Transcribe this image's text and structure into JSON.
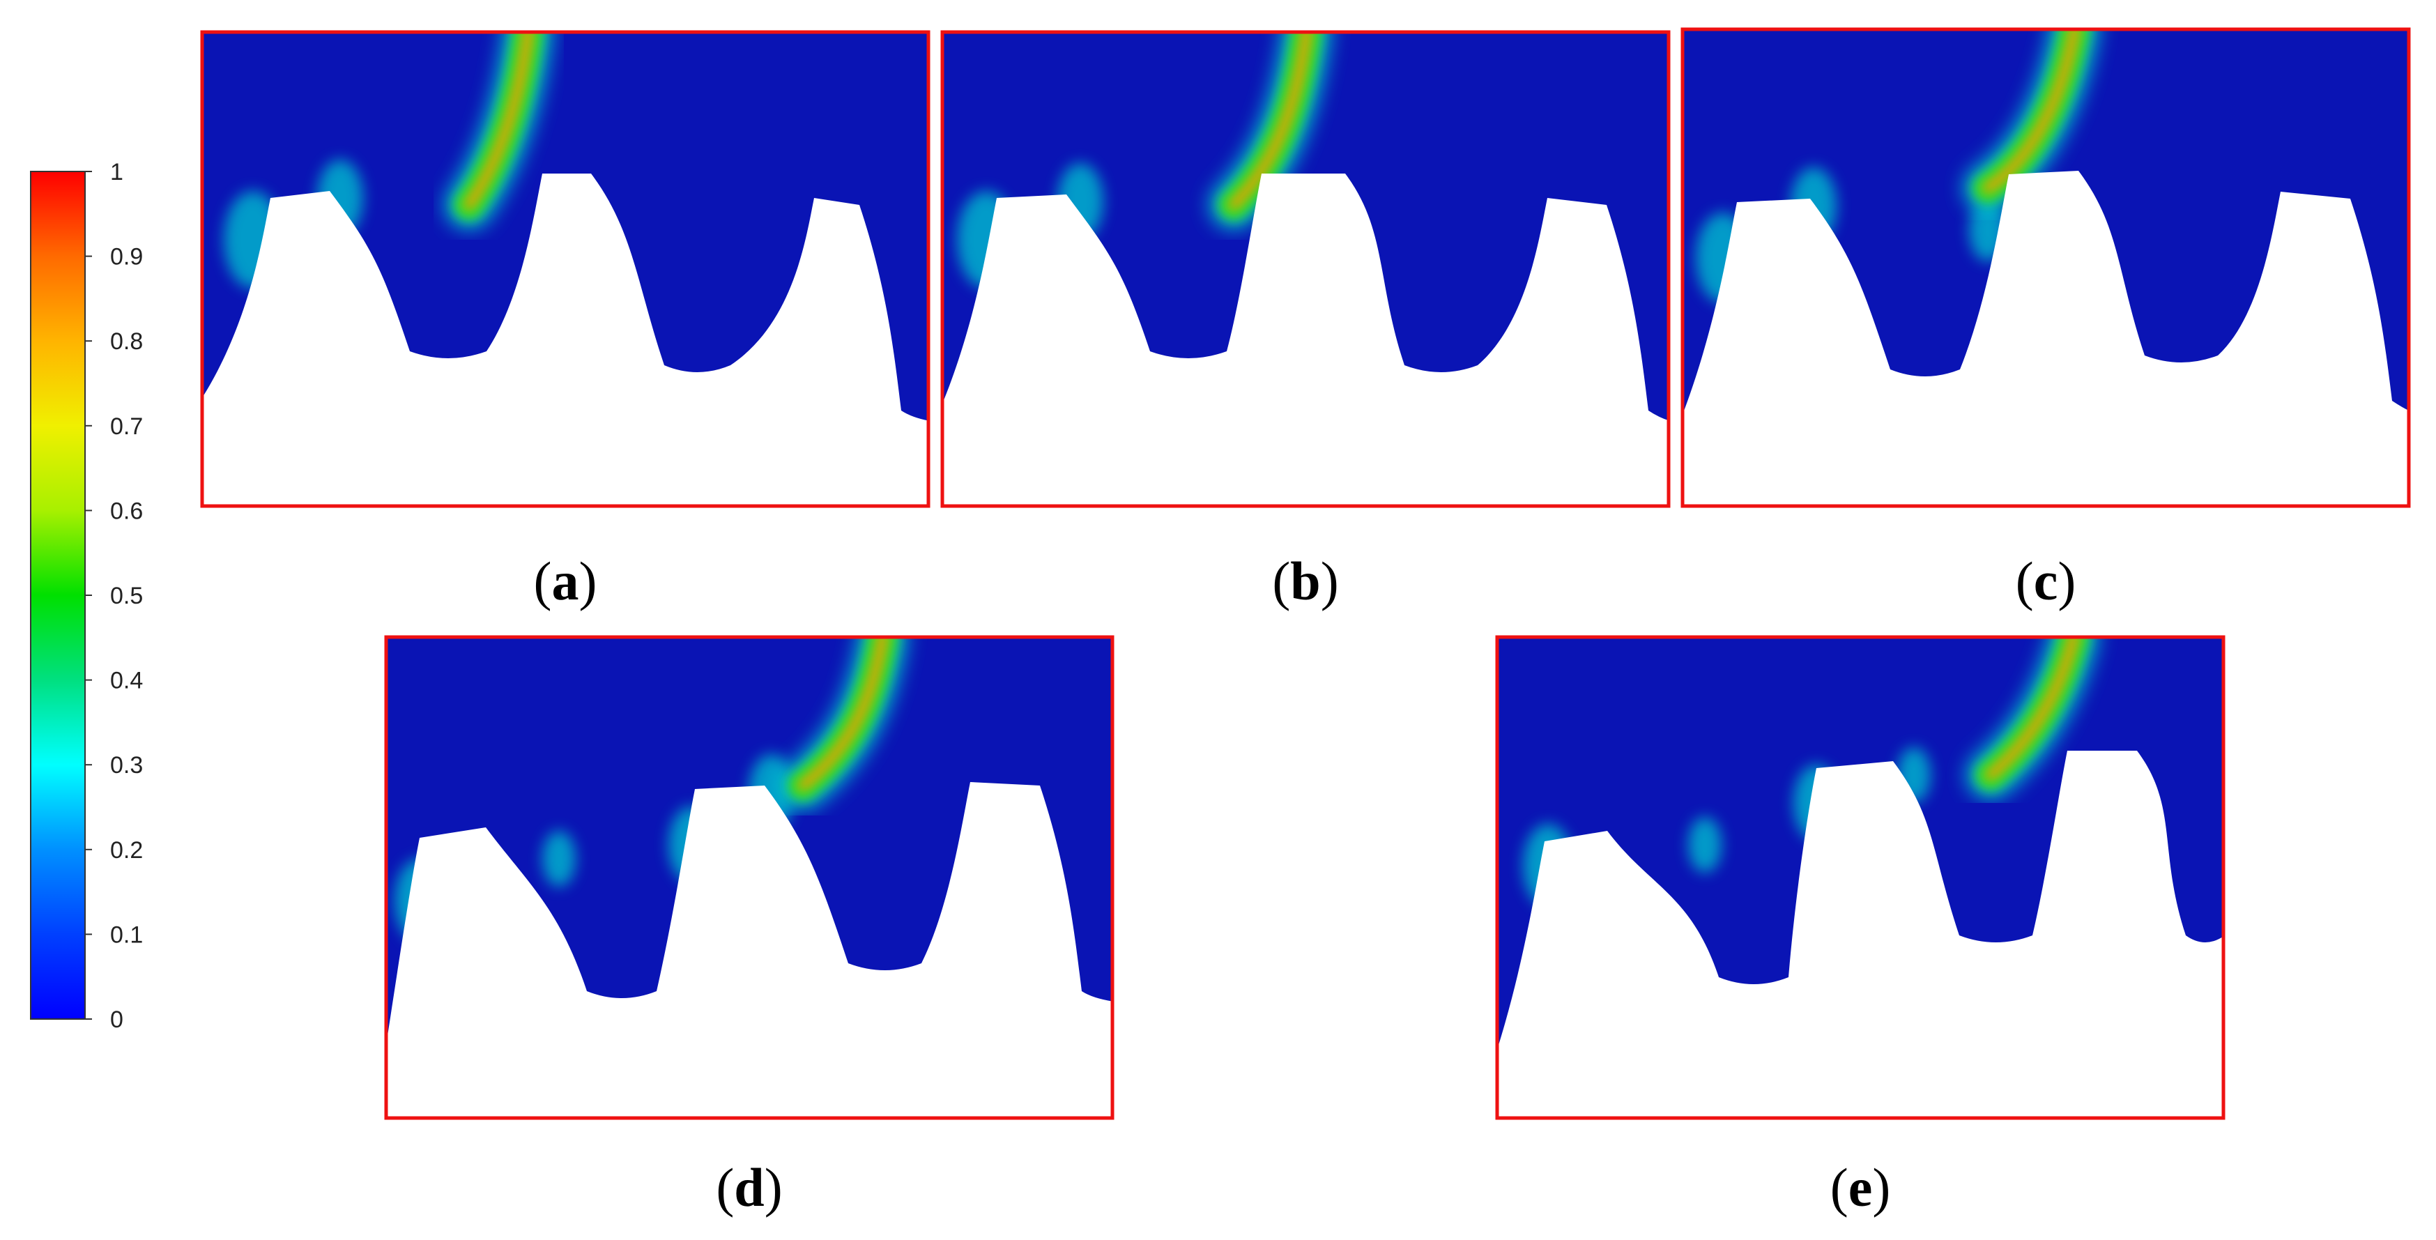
{
  "colorbar": {
    "ticks": [
      "1",
      "0.9",
      "0.8",
      "0.7",
      "0.6",
      "0.5",
      "0.4",
      "0.3",
      "0.2",
      "0.1",
      "0"
    ],
    "stops": [
      "#ff0000",
      "#ff6a00",
      "#ffb400",
      "#f0f000",
      "#a8f000",
      "#00e000",
      "#00e080",
      "#00ffff",
      "#0090ff",
      "#0040ff",
      "#0000ff"
    ]
  },
  "colors": {
    "fluid_background": "#0a14b4",
    "frame_border": "#ee1111",
    "gear_fill": "#ffffff",
    "jet_core": "#ff9a00",
    "jet_mid": "#33dd22",
    "jet_halo": "#00c8d0"
  },
  "panels": [
    {
      "id": "a",
      "caption_open": "(",
      "caption_letter": "a",
      "caption_close": ")"
    },
    {
      "id": "b",
      "caption_open": "(",
      "caption_letter": "b",
      "caption_close": ")"
    },
    {
      "id": "c",
      "caption_open": "(",
      "caption_letter": "c",
      "caption_close": ")"
    },
    {
      "id": "d",
      "caption_open": "(",
      "caption_letter": "d",
      "caption_close": ")"
    },
    {
      "id": "e",
      "caption_open": "(",
      "caption_letter": "e",
      "caption_close": ")"
    }
  ]
}
